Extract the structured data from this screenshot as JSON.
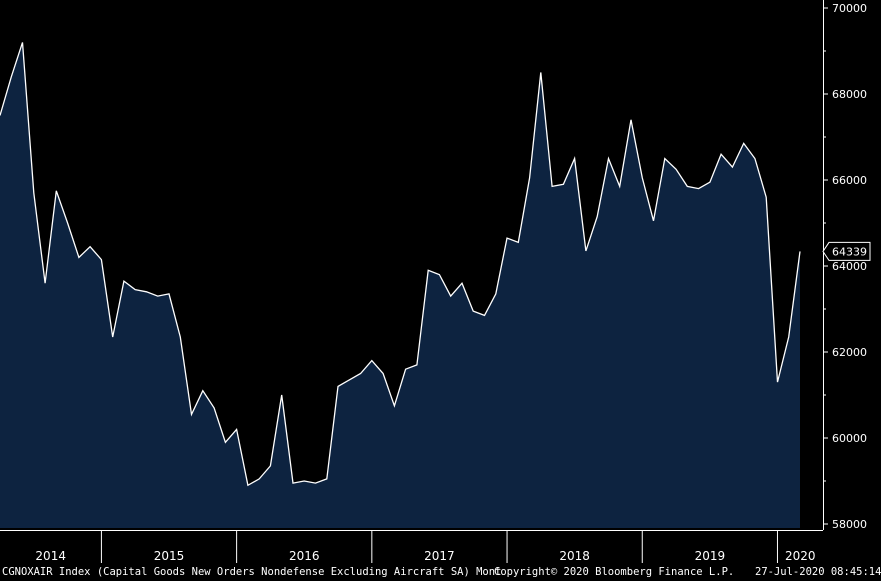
{
  "chart_data": {
    "type": "area",
    "y_axis_position": "right",
    "ylim": [
      58000,
      70000
    ],
    "y_ticks": [
      58000,
      60000,
      62000,
      64000,
      66000,
      68000,
      70000
    ],
    "year_labels": [
      "2014",
      "2015",
      "2016",
      "2017",
      "2018",
      "2019",
      "2020"
    ],
    "last_value_label": "64339",
    "series": [
      {
        "values": [
          67500,
          68400,
          69200,
          65700,
          63600,
          65750,
          65000,
          64200,
          64450,
          64150,
          62350,
          63650,
          63450,
          63400,
          63300,
          63350,
          62350,
          60550,
          61100,
          60700,
          59900,
          60200,
          58900,
          59050,
          59350,
          61000,
          58950,
          59000,
          58950,
          59050,
          61200,
          61350,
          61500,
          61800,
          61500,
          60750,
          61600,
          61700,
          63900,
          63800,
          63300,
          63600,
          62950,
          62850,
          63350,
          64650,
          64550,
          66050,
          68500,
          65850,
          65900,
          66500,
          64350,
          65150,
          66500,
          65850,
          67400,
          66050,
          65050,
          66500,
          66250,
          65850,
          65800,
          65950,
          66600,
          66300,
          66850,
          66500,
          65600,
          61300,
          62350,
          64339
        ]
      }
    ],
    "area_fill_color": "#0d2340",
    "line_color": "#ffffff",
    "background_color": "#000000",
    "grid": false
  },
  "footer": {
    "description": "CGNOXAIR Index (Capital Goods New Orders Nondefense Excluding Aircraft SA)  Mont",
    "copyright": "Copyright© 2020 Bloomberg Finance L.P.",
    "timestamp": "27-Jul-2020 08:45:14"
  }
}
